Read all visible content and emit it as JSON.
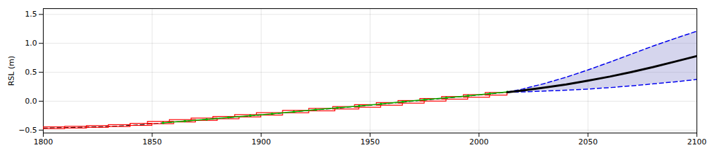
{
  "chart_data": {
    "type": "line",
    "ylabel": "RSL (m)",
    "xlim": [
      1800,
      2100
    ],
    "ylim": [
      -0.55,
      1.6
    ],
    "xticks": [
      1800,
      1850,
      1900,
      1950,
      2000,
      2050,
      2100
    ],
    "yticks": [
      {
        "value": -0.5,
        "label": "−0.5"
      },
      {
        "value": 0,
        "label": "0.0"
      },
      0.5,
      {
        "value": 1.0,
        "label": "1.0"
      },
      1.5
    ],
    "grid": true,
    "series": [
      {
        "type": "rect",
        "color": "#ff0000",
        "x": [
          1800,
          1810,
          1820,
          1830,
          1840,
          1848,
          1858,
          1868,
          1878,
          1888,
          1898,
          1910,
          1922,
          1933,
          1943,
          1953,
          1963,
          1973,
          1983,
          1993,
          2003
        ],
        "width": [
          10,
          10,
          10,
          10,
          10,
          12,
          12,
          12,
          12,
          12,
          12,
          12,
          12,
          12,
          12,
          12,
          12,
          12,
          12,
          12,
          10
        ],
        "values": [
          -0.465,
          -0.455,
          -0.443,
          -0.428,
          -0.407,
          -0.375,
          -0.345,
          -0.318,
          -0.29,
          -0.258,
          -0.225,
          -0.185,
          -0.152,
          -0.12,
          -0.088,
          -0.053,
          -0.017,
          0.018,
          0.052,
          0.085,
          0.122
        ],
        "height": [
          0.03,
          0.03,
          0.03,
          0.032,
          0.035,
          0.04,
          0.04,
          0.04,
          0.04,
          0.04,
          0.042,
          0.042,
          0.042,
          0.042,
          0.045,
          0.045,
          0.045,
          0.045,
          0.045,
          0.045,
          0.045
        ]
      },
      {
        "type": "line",
        "color": "#000000",
        "line_style": "dashed",
        "x": [
          1800,
          1805,
          1815,
          1825,
          1835,
          1845,
          1855,
          1865,
          1875,
          1885,
          1895,
          1905,
          1915,
          1925,
          1935,
          1945,
          1955,
          1965,
          1975,
          1985,
          1995,
          2005,
          2013
        ],
        "values": [
          -0.465,
          -0.46,
          -0.453,
          -0.443,
          -0.428,
          -0.407,
          -0.375,
          -0.345,
          -0.316,
          -0.286,
          -0.255,
          -0.222,
          -0.185,
          -0.152,
          -0.12,
          -0.088,
          -0.053,
          -0.017,
          0.018,
          0.052,
          0.088,
          0.125,
          0.155
        ]
      },
      {
        "type": "line",
        "color": "#00bb00",
        "line_style": "solid",
        "marker": "dot",
        "x": [
          1855,
          1865,
          1875,
          1885,
          1895,
          1905,
          1915,
          1925,
          1935,
          1945,
          1955,
          1965,
          1975,
          1985,
          1995,
          2005,
          2013
        ],
        "values": [
          -0.375,
          -0.345,
          -0.315,
          -0.282,
          -0.25,
          -0.218,
          -0.182,
          -0.148,
          -0.115,
          -0.083,
          -0.048,
          -0.01,
          0.025,
          0.058,
          0.093,
          0.13,
          0.16
        ]
      },
      {
        "type": "area",
        "color": "#8888cc",
        "x": [
          2013,
          2020,
          2030,
          2040,
          2050,
          2060,
          2070,
          2080,
          2090,
          2100
        ],
        "lower": [
          0.155,
          0.16,
          0.175,
          0.19,
          0.21,
          0.235,
          0.265,
          0.3,
          0.335,
          0.375
        ],
        "upper": [
          0.155,
          0.21,
          0.305,
          0.415,
          0.54,
          0.675,
          0.815,
          0.955,
          1.085,
          1.21
        ]
      },
      {
        "type": "line",
        "color": "#0000ee",
        "line_style": "dashed",
        "x": [
          2013,
          2020,
          2030,
          2040,
          2050,
          2060,
          2070,
          2080,
          2090,
          2100
        ],
        "values": [
          0.155,
          0.21,
          0.305,
          0.415,
          0.54,
          0.675,
          0.815,
          0.955,
          1.085,
          1.21
        ]
      },
      {
        "type": "line",
        "color": "#0000ee",
        "line_style": "dashed",
        "x": [
          2013,
          2020,
          2030,
          2040,
          2050,
          2060,
          2070,
          2080,
          2090,
          2100
        ],
        "values": [
          0.155,
          0.16,
          0.175,
          0.19,
          0.21,
          0.235,
          0.265,
          0.3,
          0.335,
          0.375
        ]
      },
      {
        "type": "line",
        "color": "#000000",
        "line_style": "solid",
        "x": [
          2013,
          2020,
          2030,
          2040,
          2050,
          2060,
          2070,
          2080,
          2090,
          2100
        ],
        "values": [
          0.155,
          0.185,
          0.235,
          0.29,
          0.355,
          0.425,
          0.505,
          0.59,
          0.685,
          0.78
        ]
      }
    ]
  }
}
